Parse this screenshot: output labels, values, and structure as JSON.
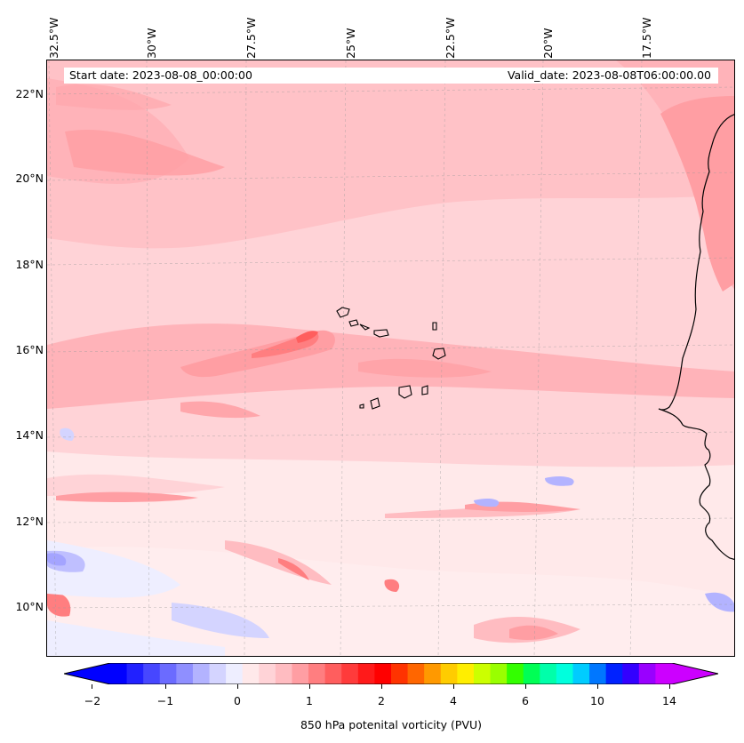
{
  "map": {
    "start_date": "Start date: 2023-08-08_00:00:00",
    "valid_date": "Valid_date: 2023-08-08T06:00:00.00",
    "lon_labels": [
      "32.5°W",
      "30°W",
      "27.5°W",
      "25°W",
      "22.5°W",
      "20°W",
      "17.5°W"
    ],
    "lat_labels": [
      "22°N",
      "20°N",
      "18°N",
      "16°N",
      "14°N",
      "12°N",
      "10°N"
    ],
    "variable": "850 hPa potential vorticity (PVU)",
    "colorbar_label": "850 hPa potenital vorticity (PVU)",
    "colorbar_ticks": [
      "−2",
      "−1",
      "0",
      "1",
      "2",
      "4",
      "6",
      "10",
      "14"
    ],
    "colorbar_colors": [
      "#0000ff",
      "#2121ff",
      "#4747ff",
      "#6b6bff",
      "#8f8fff",
      "#b3b3ff",
      "#d4d4ff",
      "#eeeeff",
      "#ffe9ea",
      "#ffd3d7",
      "#ffbcc1",
      "#ff9ea3",
      "#ff7e80",
      "#ff5e5e",
      "#ff3b3b",
      "#ff1a1a",
      "#ff0000",
      "#ff3300",
      "#ff6600",
      "#ff9900",
      "#ffcc00",
      "#ffee00",
      "#ccff00",
      "#99ff00",
      "#33ff00",
      "#00ff55",
      "#00ffaa",
      "#00ffdd",
      "#00ccff",
      "#0077ff",
      "#0022ff",
      "#3300ff",
      "#9900ff",
      "#cc00ff"
    ],
    "under_color": "#0000ff",
    "over_color": "#cc00ff"
  }
}
